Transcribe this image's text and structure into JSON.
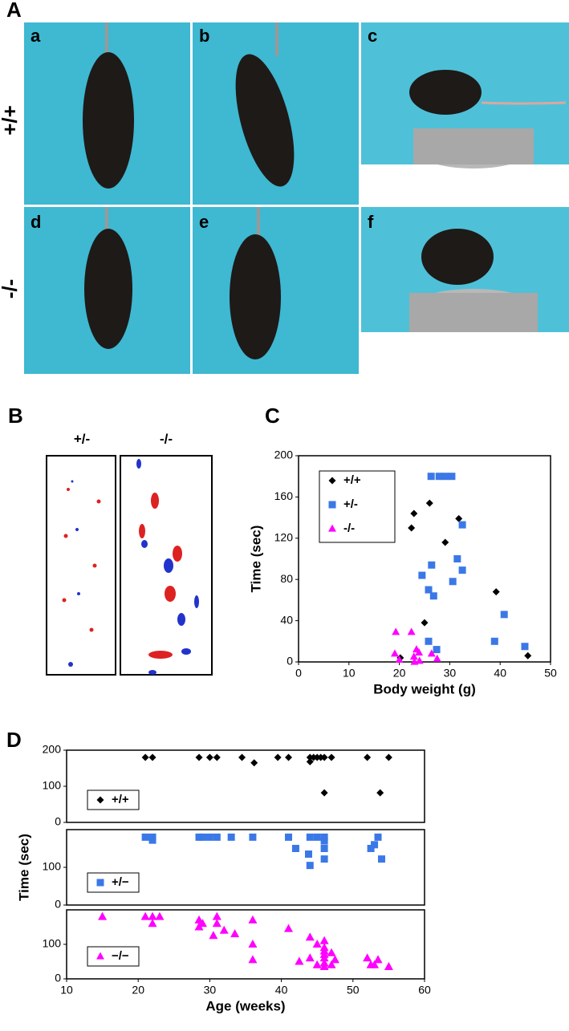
{
  "panels": {
    "A": {
      "label": "A",
      "images": [
        "a",
        "b",
        "c",
        "d",
        "e",
        "f"
      ],
      "rows": [
        "+/+",
        "-/-"
      ]
    },
    "B": {
      "label": "B",
      "columns": [
        "+/-",
        "-/-"
      ]
    },
    "C": {
      "label": "C"
    },
    "D": {
      "label": "D"
    }
  },
  "chart_data": [
    {
      "type": "scatter",
      "xlabel": "Body weight (g)",
      "ylabel": "Time (sec)",
      "xlim": [
        0,
        50
      ],
      "ylim": [
        0,
        200
      ],
      "xticks": [
        0,
        10,
        20,
        30,
        40,
        50
      ],
      "yticks": [
        0,
        40,
        80,
        120,
        160,
        200
      ],
      "legend": "top-left",
      "series": [
        {
          "name": "+/+",
          "color": "#000000",
          "marker": "diamond",
          "x": [
            22.4,
            22.9,
            26,
            29.1,
            31.8,
            39.2,
            45.5,
            25,
            20.2
          ],
          "values": [
            130,
            144,
            154,
            116,
            139,
            68,
            6,
            38,
            4
          ]
        },
        {
          "name": "+/-",
          "color": "#3b78e7",
          "marker": "square",
          "x": [
            26.3,
            27.9,
            29.1,
            30.4,
            32.5,
            31.5,
            32.5,
            30.6,
            24.5,
            26.4,
            25.8,
            26.8,
            40.8,
            38.9,
            44.9,
            25.8,
            27.4
          ],
          "values": [
            180,
            180,
            180,
            180,
            133,
            100,
            89,
            78,
            84,
            94,
            70,
            64,
            46,
            20,
            15,
            20,
            12
          ]
        },
        {
          "name": "-/-",
          "color": "#ff00ff",
          "marker": "triangle",
          "x": [
            19.3,
            22.4,
            19.1,
            20,
            22.9,
            23.4,
            23.9,
            26.4,
            27.5,
            23,
            24
          ],
          "values": [
            29,
            29,
            8,
            2,
            5,
            12,
            9,
            8,
            3,
            0,
            1
          ]
        }
      ]
    },
    {
      "type": "scatter",
      "xlim": [
        10,
        60
      ],
      "ylim": [
        0,
        200
      ],
      "yticks": [
        0,
        100,
        200
      ],
      "legend": "bottom-left",
      "series": [
        {
          "name": "+/+",
          "color": "#000000",
          "marker": "diamond",
          "x": [
            21,
            22,
            28.5,
            30,
            31,
            34.5,
            36.2,
            39.5,
            41,
            44,
            44.5,
            45,
            45.5,
            46,
            47,
            52,
            55,
            44,
            46,
            53.8
          ],
          "values": [
            180,
            180,
            180,
            180,
            180,
            180,
            165,
            180,
            180,
            180,
            180,
            180,
            180,
            180,
            180,
            180,
            180,
            168,
            82,
            82
          ]
        }
      ]
    },
    {
      "type": "scatter",
      "ylabel": "Time (sec)",
      "xlim": [
        10,
        60
      ],
      "ylim": [
        0,
        200
      ],
      "yticks": [
        0,
        100
      ],
      "legend": "bottom-left",
      "series": [
        {
          "name": "+/−",
          "color": "#3b78e7",
          "marker": "square",
          "x": [
            21,
            22,
            28.5,
            29,
            30,
            31,
            33,
            36,
            41,
            44,
            45,
            46,
            22,
            42,
            43.8,
            44,
            46,
            46,
            52.5,
            53,
            53.5,
            54,
            46
          ],
          "values": [
            180,
            180,
            180,
            180,
            180,
            180,
            180,
            180,
            180,
            180,
            180,
            180,
            172,
            150,
            135,
            105,
            150,
            122,
            150,
            160,
            180,
            122,
            170
          ]
        }
      ]
    },
    {
      "type": "scatter",
      "xlabel": "Age (weeks)",
      "xlim": [
        10,
        60
      ],
      "ylim": [
        0,
        200
      ],
      "xticks": [
        10,
        20,
        30,
        40,
        50,
        60
      ],
      "yticks": [
        0,
        100
      ],
      "legend": "bottom-left",
      "series": [
        {
          "name": "−/−",
          "color": "#ff00ff",
          "marker": "triangle",
          "x": [
            15,
            21,
            22,
            23,
            22,
            28.5,
            29,
            28.5,
            31,
            31,
            30.5,
            32,
            33.5,
            36,
            36,
            36,
            41,
            42.5,
            44,
            44,
            45,
            45,
            46,
            46,
            46,
            46,
            46,
            46,
            46,
            47,
            47,
            47.5,
            52,
            52.5,
            53.5,
            53,
            55
          ],
          "values": [
            180,
            180,
            180,
            180,
            160,
            170,
            160,
            150,
            180,
            160,
            125,
            140,
            130,
            170,
            100,
            55,
            145,
            50,
            120,
            60,
            100,
            40,
            110,
            90,
            80,
            70,
            60,
            45,
            35,
            75,
            40,
            55,
            60,
            40,
            55,
            40,
            35
          ]
        }
      ]
    }
  ]
}
